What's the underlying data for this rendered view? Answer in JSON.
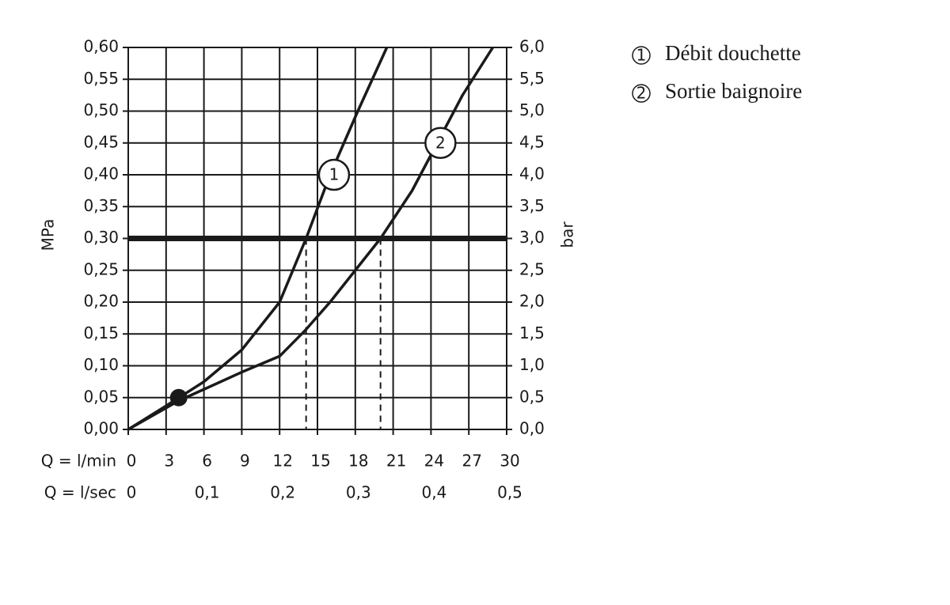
{
  "chart_data": {
    "type": "line",
    "y_label": "MPa",
    "y2_label": "bar",
    "x_label": "Q = l/min",
    "x2_label": "Q = l/sec",
    "xlim": [
      0,
      30
    ],
    "xticks": [
      0,
      3,
      6,
      9,
      12,
      15,
      18,
      21,
      24,
      27,
      30
    ],
    "x2lim": [
      0,
      0.5
    ],
    "x2ticks": [
      0,
      {
        "value": 0.1,
        "label": "0,1"
      },
      {
        "value": 0.2,
        "label": "0,2"
      },
      {
        "value": 0.3,
        "label": "0,3"
      },
      {
        "value": 0.4,
        "label": "0,4"
      },
      {
        "value": 0.5,
        "label": "0,5"
      }
    ],
    "ylim": [
      0,
      0.6
    ],
    "yticks": [
      {
        "value": 0,
        "label": "0,00"
      },
      {
        "value": 0.05,
        "label": "0,05"
      },
      {
        "value": 0.1,
        "label": "0,10"
      },
      {
        "value": 0.15,
        "label": "0,15"
      },
      {
        "value": 0.2,
        "label": "0,20"
      },
      {
        "value": 0.25,
        "label": "0,25"
      },
      {
        "value": 0.3,
        "label": "0,30"
      },
      {
        "value": 0.35,
        "label": "0,35"
      },
      {
        "value": 0.4,
        "label": "0,40"
      },
      {
        "value": 0.45,
        "label": "0,45"
      },
      {
        "value": 0.5,
        "label": "0,50"
      },
      {
        "value": 0.55,
        "label": "0,55"
      },
      {
        "value": 0.6,
        "label": "0,60"
      }
    ],
    "y2lim": [
      0,
      6
    ],
    "y2ticks": [
      {
        "value": 0,
        "label": "0,0"
      },
      {
        "value": 0.5,
        "label": "0,5"
      },
      {
        "value": 1,
        "label": "1,0"
      },
      {
        "value": 1.5,
        "label": "1,5"
      },
      {
        "value": 2,
        "label": "2,0"
      },
      {
        "value": 2.5,
        "label": "2,5"
      },
      {
        "value": 3,
        "label": "3,0"
      },
      {
        "value": 3.5,
        "label": "3,5"
      },
      {
        "value": 4,
        "label": "4,0"
      },
      {
        "value": 4.5,
        "label": "4,5"
      },
      {
        "value": 5,
        "label": "5,0"
      },
      {
        "value": 5.5,
        "label": "5,5"
      },
      {
        "value": 6,
        "label": "6,0"
      }
    ],
    "grid": true,
    "color": "#1a1a1a",
    "reference_line_y": 0.3,
    "drop_lines_x": [
      14.1,
      20
    ],
    "marker_point": {
      "x": 4,
      "y": 0.05
    },
    "series": [
      {
        "name": "Débit douchette",
        "label": "1",
        "color": "#1a1a1a",
        "x": [
          0,
          3,
          6,
          9,
          12,
          14.1,
          16,
          18.2,
          20.5
        ],
        "values": [
          0,
          0.037,
          0.075,
          0.125,
          0.2,
          0.3,
          0.4,
          0.5,
          0.6
        ]
      },
      {
        "name": "Sortie baignoire",
        "label": "2",
        "color": "#1a1a1a",
        "x": [
          0,
          4,
          9,
          12,
          14,
          16,
          18,
          20,
          22.5,
          24.5,
          26.5,
          28.9
        ],
        "values": [
          0,
          0.045,
          0.09,
          0.115,
          0.155,
          0.2,
          0.25,
          0.3,
          0.375,
          0.45,
          0.525,
          0.6
        ]
      }
    ]
  }
}
